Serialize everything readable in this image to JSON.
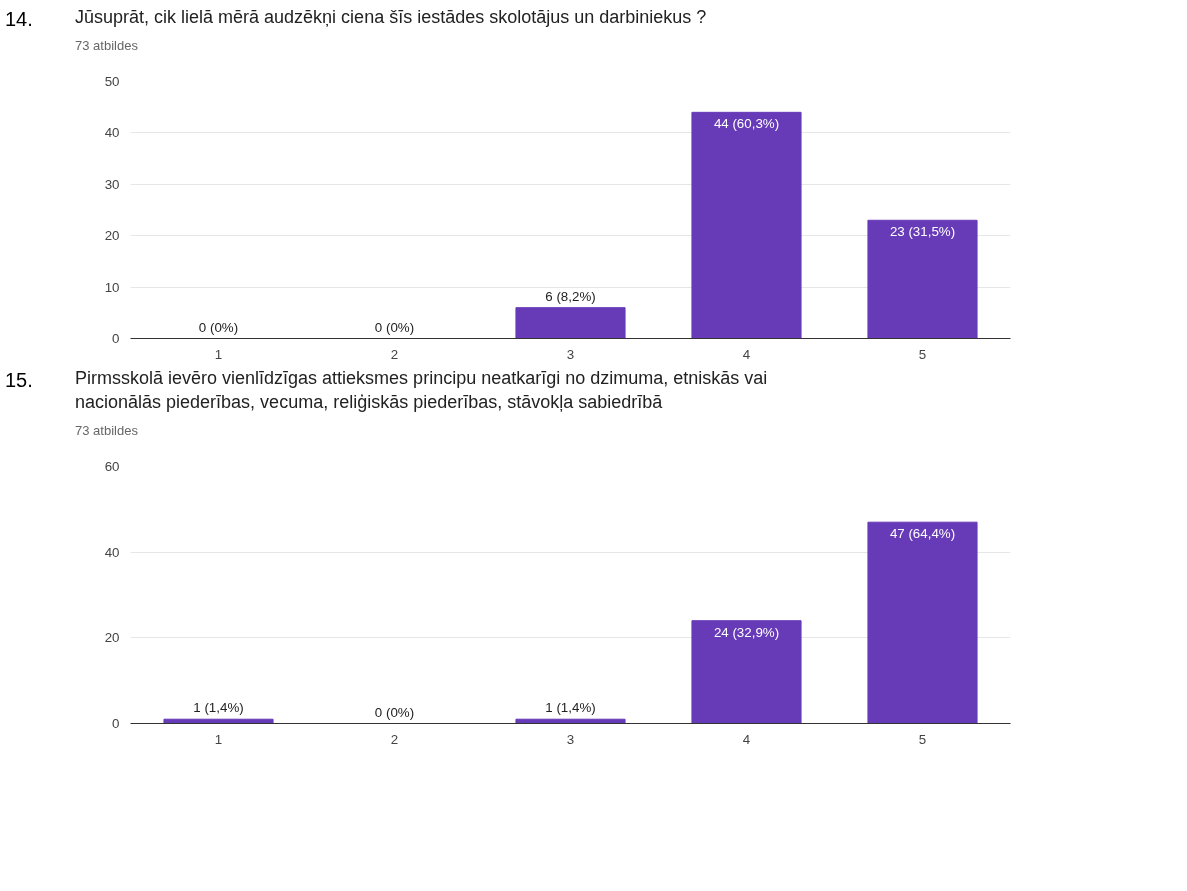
{
  "chart_data": [
    {
      "type": "bar",
      "title": "Jūsuprāt, cik lielā mērā audzēkņi ciena šīs iestādes skolotājus un darbiniekus ?",
      "subtitle": "73 atbildes",
      "annotations": [
        "14."
      ],
      "categories": [
        "1",
        "2",
        "3",
        "4",
        "5"
      ],
      "values": [
        0,
        0,
        6,
        44,
        23
      ],
      "color": "#673ab7",
      "value_labels": [
        "0 (0%)",
        "0 (0%)",
        "6 (8,2%)",
        "44 (60,3%)",
        "23 (31,5%)"
      ],
      "ylim": [
        0,
        50
      ],
      "yticks": [
        0,
        10,
        20,
        30,
        40,
        50
      ],
      "grid": "y"
    },
    {
      "type": "bar",
      "title": "Pirmsskolā ievēro vienlīdzīgas attieksmes principu neatkarīgi no dzimuma, etniskās vai nacionālās piederības, vecuma, reliģiskās piederības, stāvokļa sabiedrībā",
      "subtitle": "73 atbildes",
      "annotations": [
        "15."
      ],
      "categories": [
        "1",
        "2",
        "3",
        "4",
        "5"
      ],
      "values": [
        1,
        0,
        1,
        24,
        47
      ],
      "color": "#673ab7",
      "value_labels": [
        "1 (1,4%)",
        "0 (0%)",
        "1 (1,4%)",
        "24 (32,9%)",
        "47 (64,4%)"
      ],
      "ylim": [
        0,
        60
      ],
      "yticks": [
        0,
        20,
        40,
        60
      ],
      "grid": "y"
    }
  ]
}
